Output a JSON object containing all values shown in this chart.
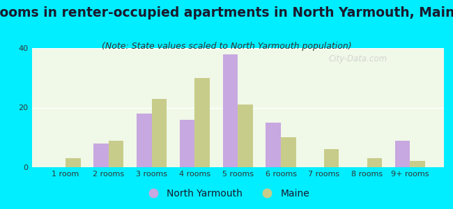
{
  "title": "Rooms in renter-occupied apartments in North Yarmouth, Maine",
  "subtitle": "(Note: State values scaled to North Yarmouth population)",
  "categories": [
    "1 room",
    "2 rooms",
    "3 rooms",
    "4 rooms",
    "5 rooms",
    "6 rooms",
    "7 rooms",
    "8 rooms",
    "9+ rooms"
  ],
  "north_yarmouth": [
    0,
    8,
    18,
    16,
    38,
    15,
    0,
    0,
    9
  ],
  "maine": [
    3,
    9,
    23,
    30,
    21,
    10,
    6,
    3,
    2
  ],
  "ny_color": "#c8a8e0",
  "maine_color": "#c8cc8a",
  "bg_outer": "#00eeff",
  "bg_plot_top": "#f5fff5",
  "bg_plot_bottom": "#e8f0d8",
  "ylim": [
    0,
    40
  ],
  "yticks": [
    0,
    20,
    40
  ],
  "bar_width": 0.35,
  "title_fontsize": 13.5,
  "subtitle_fontsize": 9,
  "tick_fontsize": 8,
  "legend_fontsize": 10,
  "title_color": "#1a1a2e",
  "subtitle_color": "#333333",
  "tick_color": "#333333",
  "watermark_text": "City-Data.com",
  "watermark_color": "#cccccc"
}
